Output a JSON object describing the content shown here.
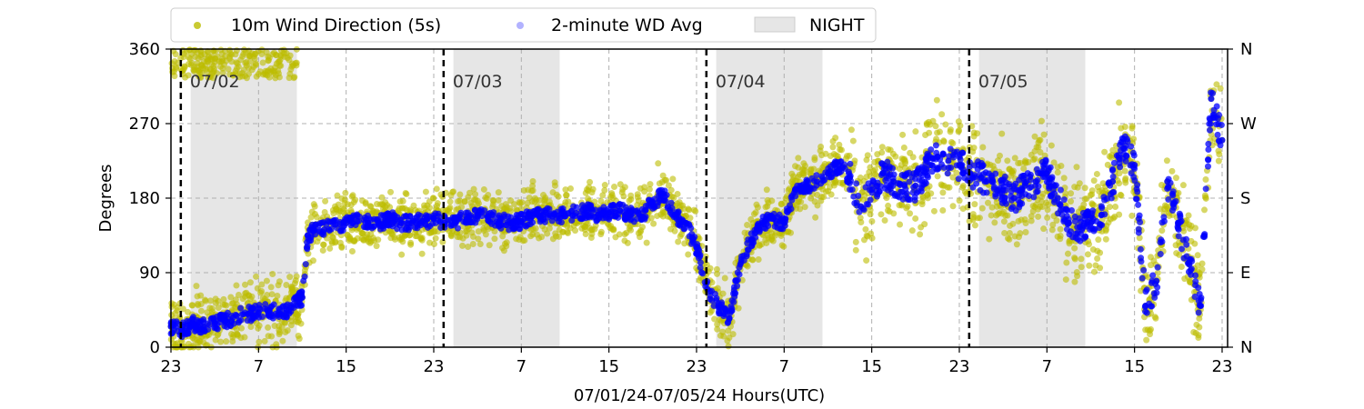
{
  "chart_data": {
    "type": "scatter",
    "xlabel": "07/01/24-07/05/24  Hours(UTC)",
    "ylabel": "Degrees",
    "xlim": [
      23,
      119.5
    ],
    "ylim": [
      0,
      360
    ],
    "x_ticks": [
      23,
      31,
      39,
      47,
      55,
      63,
      71,
      79,
      87,
      95,
      103,
      111,
      119
    ],
    "x_tick_labels": [
      "23",
      "7",
      "15",
      "23",
      "7",
      "15",
      "23",
      "7",
      "15",
      "23",
      "7",
      "15",
      "23"
    ],
    "y_ticks": [
      0,
      90,
      180,
      270,
      360
    ],
    "y_tick_labels": [
      "0",
      "90",
      "180",
      "270",
      "360"
    ],
    "right_ticks": [
      0,
      90,
      180,
      270,
      360
    ],
    "right_tick_labels": [
      "N",
      "E",
      "S",
      "W",
      "N"
    ],
    "grid": true,
    "legend_position": "top-left-outside",
    "legend": {
      "series1": "10m Wind Direction (5s)",
      "series2": "2-minute WD Avg",
      "night": "NIGHT"
    },
    "day_markers": [
      {
        "x": 23.9,
        "label": "07/02"
      },
      {
        "x": 47.9,
        "label": "07/03"
      },
      {
        "x": 71.9,
        "label": "07/04"
      },
      {
        "x": 95.9,
        "label": "07/05"
      }
    ],
    "night_bands": [
      [
        24.8,
        34.5
      ],
      [
        48.8,
        58.5
      ],
      [
        72.8,
        82.5
      ],
      [
        96.8,
        106.5
      ]
    ],
    "colors": {
      "wd5s": "#bcbd00",
      "wd2min": "#0000ff",
      "night": "#e6e6e6",
      "marker": "#000000"
    },
    "series": [
      {
        "name": "10m Wind Direction (5s)",
        "x": [
          23,
          24,
          25,
          26,
          27,
          28,
          29,
          30,
          31,
          32,
          33,
          34,
          35,
          35.5,
          36,
          37,
          38,
          39,
          40,
          41,
          42,
          43,
          44,
          45,
          46,
          47,
          48,
          49,
          50,
          51,
          52,
          53,
          54,
          55,
          56,
          57,
          58,
          59,
          60,
          61,
          62,
          63,
          64,
          65,
          66,
          67,
          68,
          69,
          70,
          71,
          72,
          73,
          74,
          75,
          76,
          77,
          78,
          79,
          80,
          81,
          82,
          83,
          84,
          85,
          86,
          87,
          88,
          89,
          90,
          91,
          92,
          93,
          94,
          95,
          96,
          97,
          98,
          99,
          100,
          101,
          102,
          103,
          104,
          105,
          106,
          107,
          108,
          109,
          110,
          111,
          112,
          113,
          114,
          115,
          116,
          117,
          118,
          119
        ],
        "y": [
          25,
          20,
          28,
          25,
          30,
          32,
          38,
          40,
          42,
          45,
          40,
          48,
          60,
          135,
          140,
          142,
          148,
          150,
          152,
          150,
          150,
          155,
          150,
          150,
          152,
          155,
          150,
          152,
          155,
          160,
          158,
          152,
          150,
          152,
          158,
          160,
          160,
          158,
          162,
          165,
          160,
          162,
          165,
          160,
          158,
          175,
          185,
          160,
          150,
          120,
          70,
          50,
          35,
          100,
          130,
          150,
          155,
          150,
          190,
          195,
          200,
          210,
          220,
          205,
          170,
          190,
          210,
          200,
          195,
          195,
          215,
          230,
          225,
          220,
          210,
          205,
          200,
          190,
          180,
          195,
          200,
          210,
          180,
          150,
          145,
          150,
          160,
          200,
          240,
          220,
          50,
          80,
          200,
          150,
          100,
          50,
          300,
          250
        ]
      },
      {
        "name": "2-minute WD Avg",
        "x": [
          23,
          24,
          25,
          26,
          27,
          28,
          29,
          30,
          31,
          32,
          33,
          34,
          35,
          35.5,
          36,
          37,
          38,
          39,
          40,
          41,
          42,
          43,
          44,
          45,
          46,
          47,
          48,
          49,
          50,
          51,
          52,
          53,
          54,
          55,
          56,
          57,
          58,
          59,
          60,
          61,
          62,
          63,
          64,
          65,
          66,
          67,
          68,
          69,
          70,
          71,
          72,
          73,
          74,
          75,
          76,
          77,
          78,
          79,
          80,
          81,
          82,
          83,
          84,
          85,
          86,
          87,
          88,
          89,
          90,
          91,
          92,
          93,
          94,
          95,
          96,
          97,
          98,
          99,
          100,
          101,
          102,
          103,
          104,
          105,
          106,
          107,
          108,
          109,
          110,
          111,
          112,
          113,
          114,
          115,
          116,
          117,
          118,
          119
        ],
        "y": [
          25,
          20,
          28,
          25,
          30,
          32,
          38,
          40,
          42,
          45,
          40,
          48,
          60,
          135,
          140,
          142,
          148,
          150,
          152,
          150,
          150,
          155,
          150,
          150,
          152,
          155,
          150,
          152,
          155,
          160,
          158,
          152,
          150,
          152,
          158,
          160,
          160,
          158,
          162,
          165,
          160,
          162,
          165,
          160,
          158,
          175,
          185,
          160,
          150,
          120,
          70,
          50,
          35,
          100,
          130,
          150,
          155,
          150,
          190,
          195,
          200,
          210,
          220,
          205,
          170,
          190,
          210,
          200,
          195,
          195,
          215,
          230,
          225,
          220,
          210,
          205,
          200,
          190,
          180,
          195,
          200,
          210,
          180,
          150,
          145,
          150,
          160,
          200,
          240,
          220,
          50,
          80,
          200,
          150,
          100,
          50,
          300,
          250
        ]
      }
    ]
  }
}
